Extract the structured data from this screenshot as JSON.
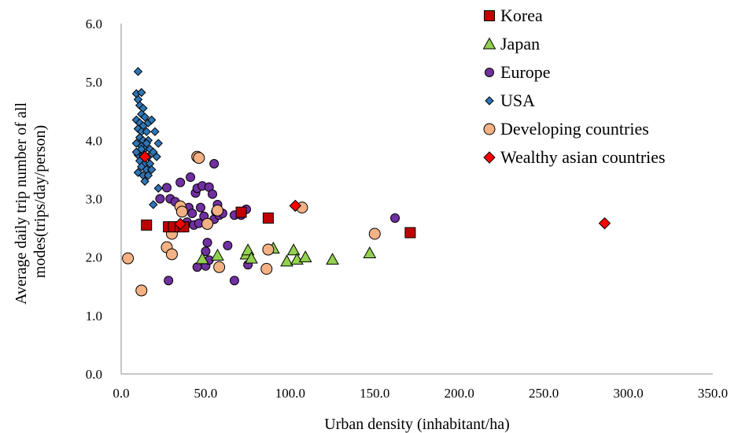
{
  "chart_data": {
    "type": "scatter",
    "xlabel": "Urban density (inhabitant/ha)",
    "ylabel_lines": [
      "Average daily trip number of all",
      "modes(trips/day/person)"
    ],
    "xlim": [
      0,
      350
    ],
    "ylim": [
      0,
      6
    ],
    "x_ticks": [
      "0.0",
      "50.0",
      "100.0",
      "150.0",
      "200.0",
      "250.0",
      "300.0",
      "350.0"
    ],
    "y_ticks": [
      "0.0",
      "1.0",
      "2.0",
      "3.0",
      "4.0",
      "5.0",
      "6.0"
    ],
    "grid": false,
    "legend_position": "top-right",
    "series": [
      {
        "name": "Korea",
        "marker": "square",
        "color": "#c00000",
        "points": [
          [
            15,
            2.55
          ],
          [
            28,
            2.52
          ],
          [
            31,
            2.52
          ],
          [
            35,
            2.52
          ],
          [
            37,
            2.52
          ],
          [
            71,
            2.77
          ],
          [
            87,
            2.67
          ],
          [
            171,
            2.42
          ]
        ]
      },
      {
        "name": "Japan",
        "marker": "triangle",
        "color": "#92d050",
        "points": [
          [
            48,
            1.97
          ],
          [
            57,
            2.03
          ],
          [
            74,
            2.05
          ],
          [
            75,
            2.12
          ],
          [
            77,
            1.98
          ],
          [
            90,
            2.15
          ],
          [
            98,
            1.93
          ],
          [
            102,
            2.12
          ],
          [
            104,
            1.96
          ],
          [
            109,
            2.0
          ],
          [
            125,
            1.96
          ],
          [
            147,
            2.07
          ]
        ]
      },
      {
        "name": "Europe",
        "marker": "circle",
        "color": "#7030a0",
        "points": [
          [
            23,
            3.0
          ],
          [
            27,
            3.19
          ],
          [
            29,
            3.0
          ],
          [
            32,
            2.95
          ],
          [
            35,
            3.28
          ],
          [
            38,
            2.55
          ],
          [
            39,
            2.6
          ],
          [
            40,
            2.85
          ],
          [
            41,
            3.37
          ],
          [
            42,
            2.75
          ],
          [
            43,
            2.55
          ],
          [
            44,
            3.1
          ],
          [
            45,
            3.18
          ],
          [
            46,
            2.58
          ],
          [
            47,
            2.85
          ],
          [
            48,
            3.22
          ],
          [
            49,
            2.7
          ],
          [
            50,
            2.1
          ],
          [
            51,
            2.25
          ],
          [
            52,
            3.2
          ],
          [
            54,
            3.08
          ],
          [
            55,
            2.65
          ],
          [
            56,
            2.78
          ],
          [
            57,
            2.9
          ],
          [
            58,
            2.72
          ],
          [
            60,
            2.75
          ],
          [
            63,
            2.2
          ],
          [
            67,
            2.72
          ],
          [
            71,
            2.72
          ],
          [
            74,
            2.82
          ],
          [
            45,
            1.83
          ],
          [
            50,
            1.85
          ],
          [
            52,
            1.95
          ],
          [
            28,
            1.6
          ],
          [
            67,
            1.6
          ],
          [
            75,
            1.87
          ],
          [
            162,
            2.67
          ],
          [
            55,
            3.6
          ]
        ]
      },
      {
        "name": "USA",
        "marker": "diamond",
        "color": "#2e75b6",
        "points": [
          [
            10,
            5.18
          ],
          [
            9,
            4.8
          ],
          [
            10,
            4.7
          ],
          [
            12,
            4.82
          ],
          [
            11,
            4.6
          ],
          [
            13,
            4.55
          ],
          [
            12,
            4.45
          ],
          [
            14,
            4.4
          ],
          [
            9,
            4.35
          ],
          [
            11,
            4.3
          ],
          [
            13,
            4.25
          ],
          [
            16,
            4.3
          ],
          [
            18,
            4.35
          ],
          [
            10,
            4.2
          ],
          [
            12,
            4.15
          ],
          [
            15,
            4.15
          ],
          [
            20,
            4.15
          ],
          [
            11,
            4.05
          ],
          [
            13,
            4.0
          ],
          [
            16,
            4.0
          ],
          [
            22,
            3.95
          ],
          [
            9,
            3.95
          ],
          [
            12,
            3.9
          ],
          [
            14,
            3.85
          ],
          [
            17,
            3.85
          ],
          [
            19,
            3.8
          ],
          [
            10,
            3.75
          ],
          [
            13,
            3.75
          ],
          [
            16,
            3.72
          ],
          [
            21,
            3.72
          ],
          [
            9,
            3.8
          ],
          [
            11,
            3.65
          ],
          [
            14,
            3.6
          ],
          [
            17,
            3.6
          ],
          [
            12,
            3.55
          ],
          [
            15,
            3.5
          ],
          [
            18,
            3.5
          ],
          [
            10,
            3.45
          ],
          [
            13,
            3.4
          ],
          [
            16,
            3.4
          ],
          [
            14,
            3.3
          ],
          [
            22,
            3.18
          ],
          [
            19,
            2.9
          ],
          [
            12,
            3.85
          ],
          [
            15,
            3.95
          ]
        ]
      },
      {
        "name": "Developing countries",
        "marker": "circle",
        "color": "#f4b183",
        "points": [
          [
            4,
            1.98
          ],
          [
            12,
            1.43
          ],
          [
            27,
            2.17
          ],
          [
            30,
            2.05
          ],
          [
            30,
            2.4
          ],
          [
            35,
            2.87
          ],
          [
            36,
            2.78
          ],
          [
            45,
            3.72
          ],
          [
            46,
            3.7
          ],
          [
            51,
            2.57
          ],
          [
            57,
            2.8
          ],
          [
            58,
            1.83
          ],
          [
            86,
            1.8
          ],
          [
            87,
            2.13
          ],
          [
            107,
            2.85
          ],
          [
            150,
            2.4
          ]
        ]
      },
      {
        "name": "Wealthy asian countries",
        "marker": "diamond",
        "color": "#ff0000",
        "points": [
          [
            14,
            3.72
          ],
          [
            35,
            2.57
          ],
          [
            103,
            2.88
          ],
          [
            286,
            2.58
          ]
        ]
      }
    ]
  }
}
